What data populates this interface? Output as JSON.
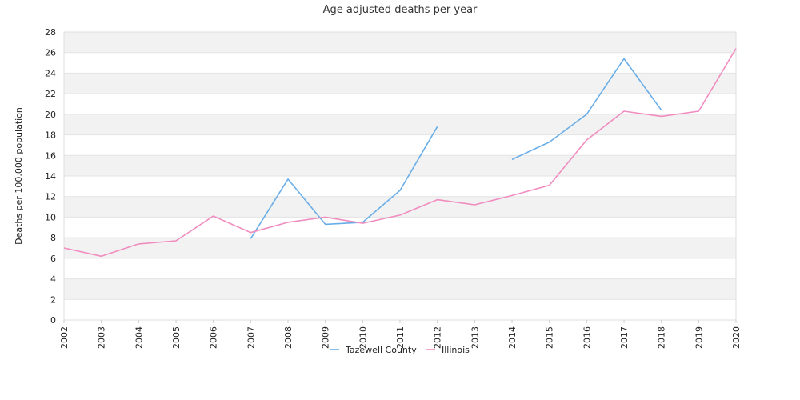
{
  "chart_data": {
    "type": "line",
    "title": "Age adjusted deaths per year",
    "xlabel": "",
    "ylabel": "Deaths per 100,000 population",
    "x": [
      "2002",
      "2003",
      "2004",
      "2005",
      "2006",
      "2007",
      "2008",
      "2009",
      "2010",
      "2011",
      "2012",
      "2013",
      "2014",
      "2015",
      "2016",
      "2017",
      "2018",
      "2019",
      "2020"
    ],
    "ylim": [
      0,
      28
    ],
    "yticks": [
      0,
      2,
      4,
      6,
      8,
      10,
      12,
      14,
      16,
      18,
      20,
      22,
      24,
      26,
      28
    ],
    "grid": "horizontal bands",
    "legend_position": "bottom",
    "series": [
      {
        "name": "Tazewell County",
        "color": "#6aaee8",
        "values": [
          null,
          null,
          null,
          null,
          null,
          7.9,
          13.7,
          9.3,
          9.5,
          12.6,
          18.8,
          null,
          15.6,
          17.3,
          20.0,
          25.4,
          20.4,
          null,
          null
        ]
      },
      {
        "name": "Illinois",
        "color": "#f08cbf",
        "values": [
          7.0,
          6.2,
          7.4,
          7.7,
          10.1,
          8.5,
          9.5,
          10.0,
          9.4,
          10.2,
          11.7,
          11.2,
          12.1,
          13.1,
          17.5,
          20.3,
          19.8,
          20.3,
          26.4
        ]
      }
    ]
  }
}
